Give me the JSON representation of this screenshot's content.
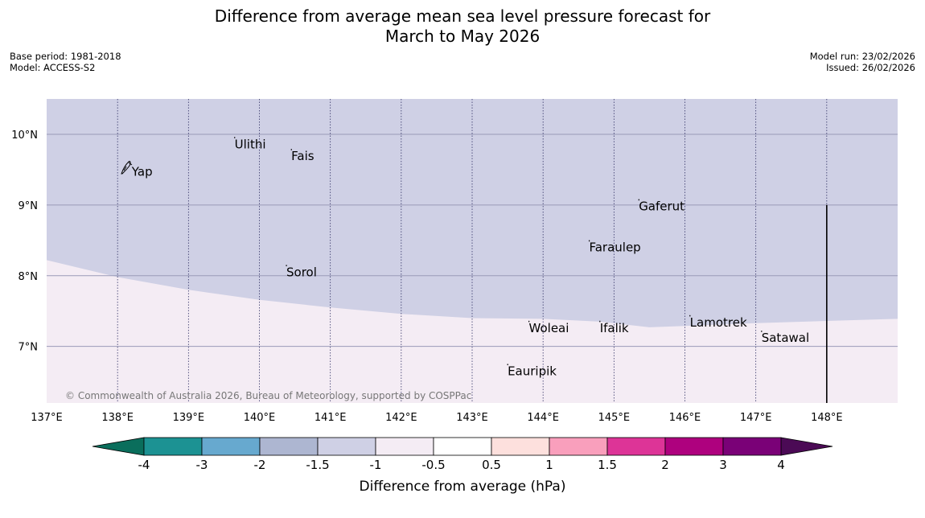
{
  "title": {
    "line1": "Difference from average mean sea level pressure forecast for",
    "line2": "March to May 2026"
  },
  "meta_left": {
    "base_period": "Base period: 1981-2018",
    "model": "Model: ACCESS-S2"
  },
  "meta_right": {
    "model_run": "Model run: 23/02/2026",
    "issued": "Issued: 26/02/2026"
  },
  "map": {
    "lon_range": [
      137,
      149
    ],
    "lat_range": [
      6.2,
      10.5
    ],
    "x_ticks": [
      "137°E",
      "138°E",
      "139°E",
      "140°E",
      "141°E",
      "142°E",
      "143°E",
      "144°E",
      "145°E",
      "146°E",
      "147°E",
      "148°E"
    ],
    "y_ticks": [
      "10°N",
      "9°N",
      "8°N",
      "7°N"
    ],
    "copyright": "© Commonwealth of Australia 2026, Bureau of Meteorology, supported by COSPPac",
    "region_colors": {
      "upper": "#cfd0e5",
      "lower": "#f4ecf4"
    },
    "region_boundary_lat": [
      [
        137,
        8.22
      ],
      [
        138,
        7.98
      ],
      [
        139,
        7.8
      ],
      [
        140,
        7.66
      ],
      [
        141,
        7.55
      ],
      [
        142,
        7.46
      ],
      [
        143,
        7.4
      ],
      [
        144,
        7.39
      ],
      [
        144.8,
        7.35
      ],
      [
        145.5,
        7.27
      ],
      [
        146,
        7.29
      ],
      [
        147,
        7.33
      ],
      [
        148,
        7.36
      ],
      [
        149,
        7.39
      ]
    ],
    "islands": [
      {
        "name": "Yap",
        "lon": 138.2,
        "lat": 9.47
      },
      {
        "name": "Ulithi",
        "lon": 139.65,
        "lat": 9.86
      },
      {
        "name": "Fais",
        "lon": 140.45,
        "lat": 9.69
      },
      {
        "name": "Gaferut",
        "lon": 145.35,
        "lat": 8.98
      },
      {
        "name": "Faraulep",
        "lon": 144.65,
        "lat": 8.4
      },
      {
        "name": "Sorol",
        "lon": 140.38,
        "lat": 8.05
      },
      {
        "name": "Lamotrek",
        "lon": 146.07,
        "lat": 7.34
      },
      {
        "name": "Woleai",
        "lon": 143.8,
        "lat": 7.26
      },
      {
        "name": "Ifalik",
        "lon": 144.8,
        "lat": 7.26
      },
      {
        "name": "Satawal",
        "lon": 147.08,
        "lat": 7.12
      },
      {
        "name": "Eauripik",
        "lon": 143.5,
        "lat": 6.65
      }
    ],
    "boundary_line": {
      "lon": 148,
      "lat_range": [
        6.2,
        9.0
      ]
    }
  },
  "colorbar": {
    "label": "Difference from average (hPa)",
    "ticks": [
      "-4",
      "-3",
      "-2",
      "-1.5",
      "-1",
      "-0.5",
      "0.5",
      "1",
      "1.5",
      "2",
      "3",
      "4"
    ],
    "low_extend_color": "#0a6e5c",
    "high_extend_color": "#4b0a55",
    "colors": [
      "#1c9293",
      "#67a9cf",
      "#adb6d1",
      "#cfd0e5",
      "#f4ecf4",
      "#ffffff",
      "#fde0dd",
      "#f99fbc",
      "#dd3497",
      "#ae017e",
      "#7a0177"
    ]
  }
}
